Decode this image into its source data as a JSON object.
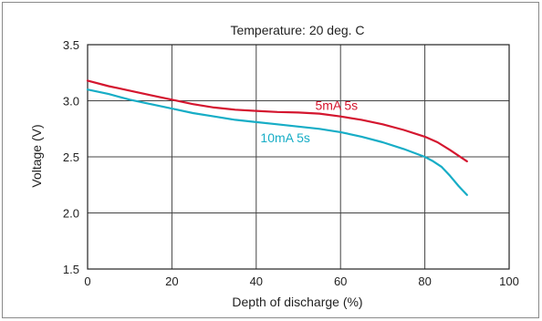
{
  "chart_data": {
    "type": "line",
    "title": "Temperature: 20 deg. C",
    "xlabel": "Depth of discharge (%)",
    "ylabel": "Voltage (V)",
    "xlim": [
      0,
      100
    ],
    "ylim": [
      1.5,
      3.5
    ],
    "xticks": [
      0,
      20,
      40,
      60,
      80,
      100
    ],
    "yticks": [
      1.5,
      2.0,
      2.5,
      3.0,
      3.5
    ],
    "xtick_labels": [
      "0",
      "20",
      "40",
      "60",
      "80",
      "100"
    ],
    "ytick_labels": [
      "1.5",
      "2.0",
      "2.5",
      "3.0",
      "3.5"
    ],
    "grid": true,
    "legend": "inline labels",
    "series": [
      {
        "name": "5mA 5s",
        "color": "#d4162f",
        "x": [
          0,
          5,
          10,
          15,
          20,
          25,
          30,
          35,
          40,
          45,
          50,
          55,
          60,
          65,
          70,
          75,
          80,
          83,
          86,
          90
        ],
        "y": [
          3.18,
          3.13,
          3.09,
          3.05,
          3.01,
          2.97,
          2.94,
          2.92,
          2.91,
          2.9,
          2.895,
          2.885,
          2.86,
          2.83,
          2.79,
          2.74,
          2.68,
          2.63,
          2.56,
          2.46
        ]
      },
      {
        "name": "10mA 5s",
        "color": "#17adc6",
        "x": [
          0,
          5,
          10,
          15,
          20,
          25,
          30,
          35,
          40,
          45,
          50,
          55,
          60,
          65,
          70,
          75,
          80,
          82,
          84,
          86,
          88,
          90
        ],
        "y": [
          3.1,
          3.06,
          3.01,
          2.97,
          2.93,
          2.89,
          2.86,
          2.83,
          2.81,
          2.79,
          2.77,
          2.75,
          2.72,
          2.68,
          2.63,
          2.57,
          2.5,
          2.46,
          2.41,
          2.33,
          2.24,
          2.16
        ]
      }
    ],
    "series_labels": [
      {
        "text": "5mA 5s",
        "x": 54,
        "y": 2.92,
        "color": "#d4162f"
      },
      {
        "text": "10mA 5s",
        "x": 41,
        "y": 2.63,
        "color": "#17adc6"
      }
    ]
  }
}
